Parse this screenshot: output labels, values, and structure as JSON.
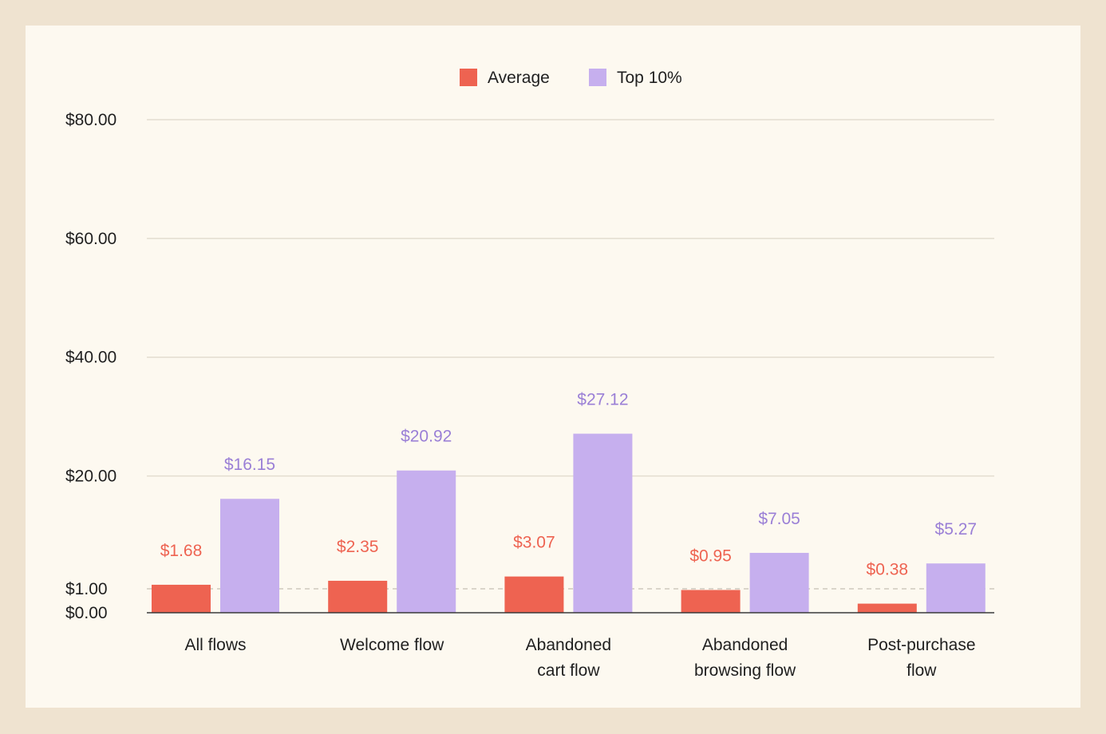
{
  "chart_data": {
    "type": "bar",
    "title": "",
    "xlabel": "",
    "ylabel": "",
    "categories": [
      [
        "All flows"
      ],
      [
        "Welcome flow"
      ],
      [
        "Abandoned",
        "cart flow"
      ],
      [
        "Abandoned",
        "browsing flow"
      ],
      [
        "Post-purchase",
        "flow"
      ]
    ],
    "series": [
      {
        "name": "Average",
        "color": "#ee6351",
        "values": [
          1.68,
          2.35,
          3.07,
          0.95,
          0.38
        ],
        "labels": [
          "$1.68",
          "$2.35",
          "$3.07",
          "$0.95",
          "$0.38"
        ]
      },
      {
        "name": "Top 10%",
        "color": "#c6afee",
        "label_color": "#9a7fd6",
        "values": [
          16.15,
          20.92,
          27.12,
          7.05,
          5.27
        ],
        "labels": [
          "$16.15",
          "$20.92",
          "$27.12",
          "$7.05",
          "$5.27"
        ]
      }
    ],
    "y_ticks": [
      {
        "value": 0,
        "label": "$0.00"
      },
      {
        "value": 1,
        "label": "$1.00"
      },
      {
        "value": 20,
        "label": "$20.00"
      },
      {
        "value": 40,
        "label": "$40.00"
      },
      {
        "value": 60,
        "label": "$60.00"
      },
      {
        "value": 80,
        "label": "$80.00"
      }
    ],
    "reference_line": {
      "value": 1,
      "style": "dashed"
    },
    "legend": {
      "position": "top-center"
    },
    "grid": true,
    "axis_scale": "broken: $0–$1 compressed, $1–$80 linear"
  }
}
